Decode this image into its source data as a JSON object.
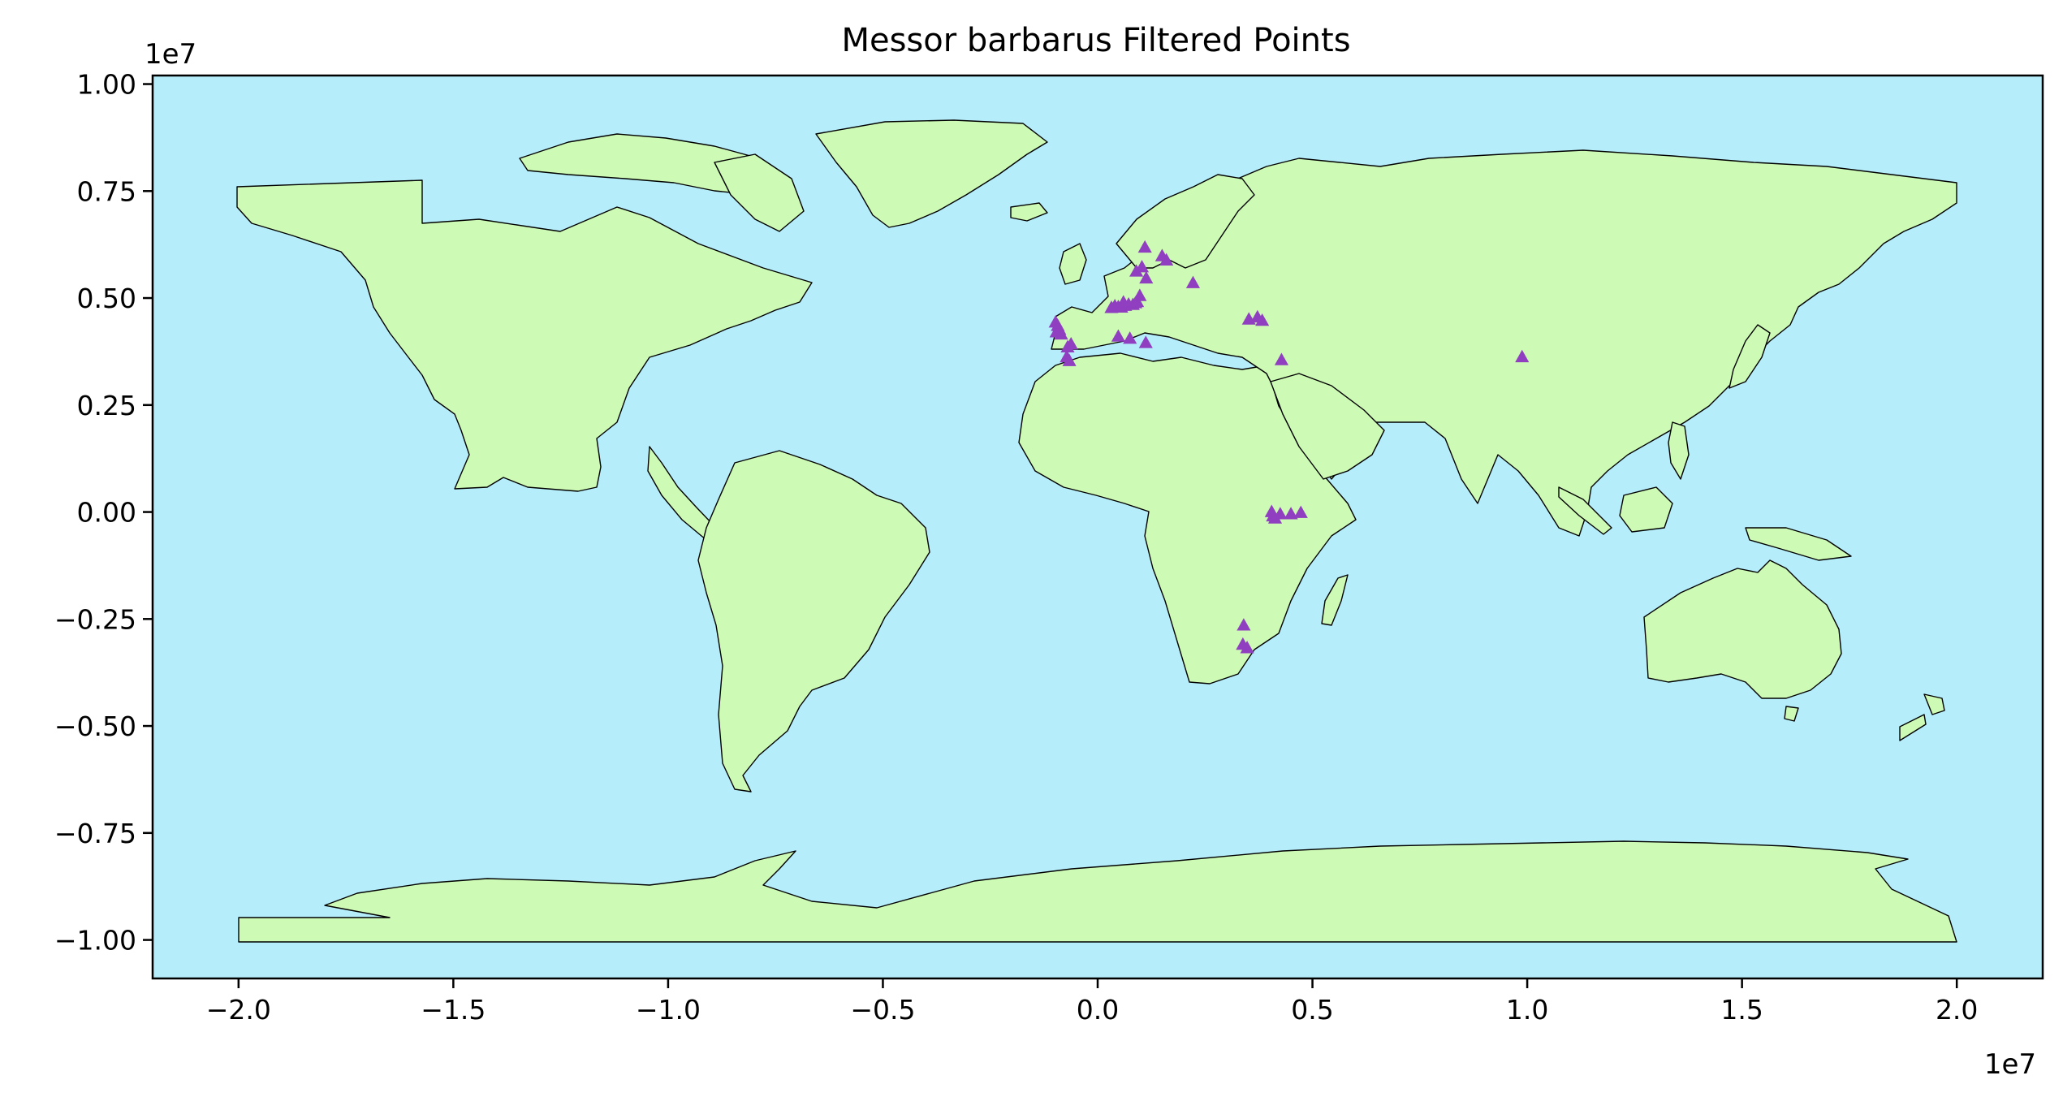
{
  "chart_data": {
    "type": "scatter",
    "title": "Messor barbarus Filtered Points",
    "xlabel": "",
    "ylabel": "",
    "x_offset_text": "1e7",
    "y_offset_text": "1e7",
    "xlim": [
      -2.2,
      2.2
    ],
    "ylim": [
      -1.09,
      1.02
    ],
    "x_ticks": [
      -2.0,
      -1.5,
      -1.0,
      -0.5,
      0.0,
      0.5,
      1.0,
      1.5,
      2.0
    ],
    "x_tick_labels": [
      "−2.0",
      "−1.5",
      "−1.0",
      "−0.5",
      "0.0",
      "0.5",
      "1.0",
      "1.5",
      "2.0"
    ],
    "y_ticks": [
      1.0,
      0.75,
      0.5,
      0.25,
      0.0,
      -0.25,
      -0.5,
      -0.75,
      -1.0
    ],
    "y_tick_labels": [
      "1.00",
      "0.75",
      "0.50",
      "0.25",
      "0.00",
      "−0.25",
      "−0.50",
      "−0.75",
      "−1.00"
    ],
    "grid": false,
    "colors": {
      "ocean": "#b5eefa",
      "land": "#cdfab5",
      "borders": "#000000",
      "points": "#8f3fbf"
    },
    "marker": "triangle",
    "series": [
      {
        "x": [
          -0.098,
          -0.093,
          -0.089,
          -0.096,
          -0.085,
          -0.062,
          -0.07,
          -0.072,
          -0.066,
          0.032,
          0.04,
          0.048,
          0.055,
          0.064,
          0.072,
          0.082,
          0.088,
          0.092,
          0.06,
          0.098,
          0.09,
          0.103,
          0.113,
          0.11,
          0.15,
          0.16,
          0.222,
          0.352,
          0.372,
          0.383,
          0.048,
          0.075,
          0.112,
          0.428,
          0.988,
          0.405,
          0.425,
          0.408,
          0.413,
          0.45,
          0.473,
          0.34,
          0.338,
          0.348
        ],
        "y": [
          0.443,
          0.435,
          0.426,
          0.42,
          0.415,
          0.392,
          0.385,
          0.362,
          0.353,
          0.477,
          0.481,
          0.479,
          0.478,
          0.482,
          0.485,
          0.484,
          0.488,
          0.491,
          0.49,
          0.505,
          0.562,
          0.572,
          0.546,
          0.618,
          0.598,
          0.588,
          0.535,
          0.45,
          0.455,
          0.447,
          0.41,
          0.405,
          0.395,
          0.355,
          0.362,
          0.0,
          -0.005,
          -0.01,
          -0.015,
          -0.005,
          -0.002,
          -0.265,
          -0.31,
          -0.318
        ]
      }
    ]
  }
}
